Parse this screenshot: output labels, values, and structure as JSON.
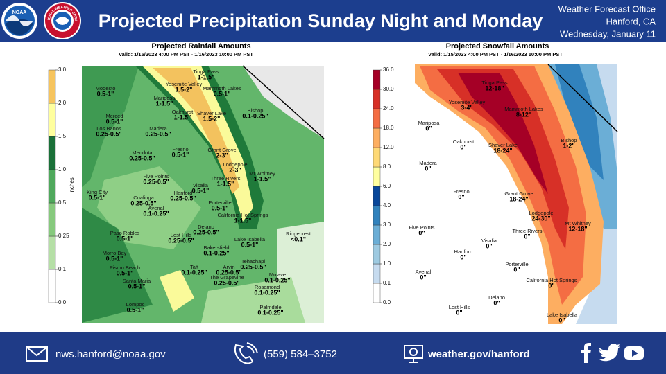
{
  "header": {
    "logos": [
      "NOAA",
      "NATIONAL WEATHER SERVICE"
    ],
    "title": "Projected Precipitation Sunday Night and Monday",
    "office": [
      "Weather Forecast Office",
      "Hanford, CA",
      "Wednesday, January 11"
    ]
  },
  "maps": [
    {
      "title": "Projected Rainfall Amounts",
      "valid": "Valid: 1/15/2023 4:00 PM PST - 1/16/2023 10:00 PM PST",
      "legend": {
        "label": "Inches",
        "ticks": [
          {
            "value": 0,
            "label": "0.0"
          },
          0.1,
          0.25,
          0.5,
          {
            "value": 1,
            "label": "1.0"
          },
          1.5,
          {
            "value": 2,
            "label": "2.0"
          },
          {
            "value": 3,
            "label": "3.0"
          }
        ],
        "colors": [
          "#ffffff",
          "#b5dfa6",
          "#86c97d",
          "#4fa85c",
          "#1a7038",
          "#ffff9e",
          "#f6c45e"
        ]
      },
      "places": [
        {
          "name": "Tioga Pass",
          "amount": "1-1.5\""
        },
        {
          "name": "Yosemite Valley",
          "amount": "1.5-2\""
        },
        {
          "name": "Mammoth Lakes",
          "amount": "0.5-1\""
        },
        {
          "name": "Modesto",
          "amount": "0.5-1\""
        },
        {
          "name": "Mariposa",
          "amount": "1-1.5\""
        },
        {
          "name": "Oakhurst",
          "amount": "1-1.5\""
        },
        {
          "name": "Shaver Lake",
          "amount": "1.5-2\""
        },
        {
          "name": "Bishop",
          "amount": "0.1-0.25\""
        },
        {
          "name": "Merced",
          "amount": "0.5-1\""
        },
        {
          "name": "Los Banos",
          "amount": "0.25-0.5\""
        },
        {
          "name": "Madera",
          "amount": "0.25-0.5\""
        },
        {
          "name": "Grant Grove",
          "amount": "2-3\""
        },
        {
          "name": "Mendota",
          "amount": "0.25-0.5\""
        },
        {
          "name": "Fresno",
          "amount": "0.5-1\""
        },
        {
          "name": "Lodgepole",
          "amount": "2-3\""
        },
        {
          "name": "Mt Whitney",
          "amount": "1-1.5\""
        },
        {
          "name": "Three Rivers",
          "amount": "1-1.5\""
        },
        {
          "name": "Five Points",
          "amount": "0.25-0.5\""
        },
        {
          "name": "Visalia",
          "amount": "0.5-1\""
        },
        {
          "name": "Hanford",
          "amount": "0.25-0.5\""
        },
        {
          "name": "King City",
          "amount": "0.5-1\""
        },
        {
          "name": "Coalinga",
          "amount": "0.25-0.5\""
        },
        {
          "name": "Avenal",
          "amount": "0.1-0.25\""
        },
        {
          "name": "Porterville",
          "amount": "0.5-1\""
        },
        {
          "name": "California Hot Springs",
          "amount": "1-1.5\""
        },
        {
          "name": "Paso Robles",
          "amount": "0.5-1\""
        },
        {
          "name": "Lost Hills",
          "amount": "0.25-0.5\""
        },
        {
          "name": "Delano",
          "amount": "0.25-0.5\""
        },
        {
          "name": "Ridgecrest",
          "amount": "<0.1\""
        },
        {
          "name": "Lake Isabella",
          "amount": "0.5-1\""
        },
        {
          "name": "Morro Bay",
          "amount": "0.5-1\""
        },
        {
          "name": "Bakersfield",
          "amount": "0.1-0.25\""
        },
        {
          "name": "Pismo Beach",
          "amount": "0.5-1\""
        },
        {
          "name": "Taft",
          "amount": "0.1-0.25\""
        },
        {
          "name": "Arvin",
          "amount": "0.25-0.5\""
        },
        {
          "name": "Tehachapi",
          "amount": "0.25-0.5\""
        },
        {
          "name": "Mojave",
          "amount": "0.1-0.25\""
        },
        {
          "name": "The Grapevine",
          "amount": "0.25-0.5\""
        },
        {
          "name": "Santa Maria",
          "amount": "0.5-1\""
        },
        {
          "name": "Rosamond",
          "amount": "0.1-0.25\""
        },
        {
          "name": "Lompoc",
          "amount": "0.5-1\""
        },
        {
          "name": "Palmdale",
          "amount": "0.1-0.25\""
        }
      ]
    },
    {
      "title": "Projected Snowfall Amounts",
      "valid": "Valid: 1/15/2023 4:00 PM PST - 1/16/2023 10:00 PM PST",
      "legend": {
        "ticks": [
          {
            "value": 0,
            "label": "0.0"
          },
          0.1,
          {
            "value": 1,
            "label": "1.0"
          },
          {
            "value": 2,
            "label": "2.0"
          },
          {
            "value": 3,
            "label": "3.0"
          },
          {
            "value": 4,
            "label": "4.0"
          },
          {
            "value": 6,
            "label": "6.0"
          },
          {
            "value": 8,
            "label": "8.0"
          },
          {
            "value": 12,
            "label": "12.0"
          },
          {
            "value": 18,
            "label": "18.0"
          },
          {
            "value": 24,
            "label": "24.0"
          },
          {
            "value": 30,
            "label": "30.0"
          },
          {
            "value": 36,
            "label": "36.0"
          }
        ],
        "colors": [
          "#ffffff",
          "#c6dbef",
          "#9ecae1",
          "#6baed6",
          "#3182bd",
          "#08479a",
          "#ffffa0",
          "#fed976",
          "#fdae61",
          "#f46d43",
          "#d73027",
          "#a50026"
        ]
      },
      "places": [
        {
          "name": "Tioga Pass",
          "amount": "12-18\""
        },
        {
          "name": "Yosemite Valley",
          "amount": "3-4\""
        },
        {
          "name": "Mammoth Lakes",
          "amount": "8-12\""
        },
        {
          "name": "Mariposa",
          "amount": "0\""
        },
        {
          "name": "Oakhurst",
          "amount": "0\""
        },
        {
          "name": "Bishop",
          "amount": "1-2\""
        },
        {
          "name": "Shaver Lake",
          "amount": "18-24\""
        },
        {
          "name": "Madera",
          "amount": "0\""
        },
        {
          "name": "Fresno",
          "amount": "0\""
        },
        {
          "name": "Grant Grove",
          "amount": "18-24\""
        },
        {
          "name": "Lodgepole",
          "amount": "24-30\""
        },
        {
          "name": "Mt Whitney",
          "amount": "12-18\""
        },
        {
          "name": "Five Points",
          "amount": "0\""
        },
        {
          "name": "Three Rivers",
          "amount": "0\""
        },
        {
          "name": "Visalia",
          "amount": "0\""
        },
        {
          "name": "Hanford",
          "amount": "0\""
        },
        {
          "name": "Porterville",
          "amount": "0\""
        },
        {
          "name": "Avenal",
          "amount": "0\""
        },
        {
          "name": "California Hot Springs",
          "amount": "0\""
        },
        {
          "name": "Delano",
          "amount": "0\""
        },
        {
          "name": "Lost Hills",
          "amount": "0\""
        },
        {
          "name": "Lake Isabella",
          "amount": "0\""
        }
      ]
    }
  ],
  "footer": {
    "email": "nws.hanford@noaa.gov",
    "phone": "(559)  584–3752",
    "website": "weather.gov/hanford"
  }
}
